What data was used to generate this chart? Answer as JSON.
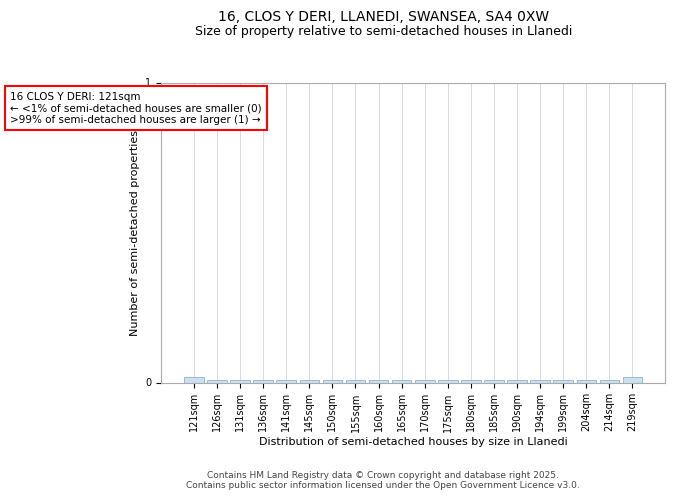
{
  "title1": "16, CLOS Y DERI, LLANEDI, SWANSEA, SA4 0XW",
  "title2": "Size of property relative to semi-detached houses in Llanedi",
  "xlabel": "Distribution of semi-detached houses by size in Llanedi",
  "ylabel": "Number of semi-detached properties",
  "categories": [
    "121sqm",
    "126sqm",
    "131sqm",
    "136sqm",
    "141sqm",
    "145sqm",
    "150sqm",
    "155sqm",
    "160sqm",
    "165sqm",
    "170sqm",
    "175sqm",
    "180sqm",
    "185sqm",
    "190sqm",
    "194sqm",
    "199sqm",
    "204sqm",
    "214sqm",
    "219sqm"
  ],
  "values": [
    0.02,
    0.01,
    0.01,
    0.01,
    0.01,
    0.01,
    0.01,
    0.01,
    0.01,
    0.01,
    0.01,
    0.01,
    0.01,
    0.01,
    0.01,
    0.01,
    0.01,
    0.01,
    0.01,
    0.02
  ],
  "bar_color": "#cce0f0",
  "bar_edge_color": "#8ab4d4",
  "annotation_text": "16 CLOS Y DERI: 121sqm\n← <1% of semi-detached houses are smaller (0)\n>99% of semi-detached houses are larger (1) →",
  "annotation_box_color": "red",
  "ylim": [
    0,
    1
  ],
  "yticks": [
    0,
    1
  ],
  "footer_line1": "Contains HM Land Registry data © Crown copyright and database right 2025.",
  "footer_line2": "Contains public sector information licensed under the Open Government Licence v3.0.",
  "background_color": "#ffffff",
  "title1_fontsize": 10,
  "title2_fontsize": 9,
  "xlabel_fontsize": 8,
  "ylabel_fontsize": 8,
  "annotation_fontsize": 7.5,
  "footer_fontsize": 6.5,
  "tick_fontsize": 7
}
